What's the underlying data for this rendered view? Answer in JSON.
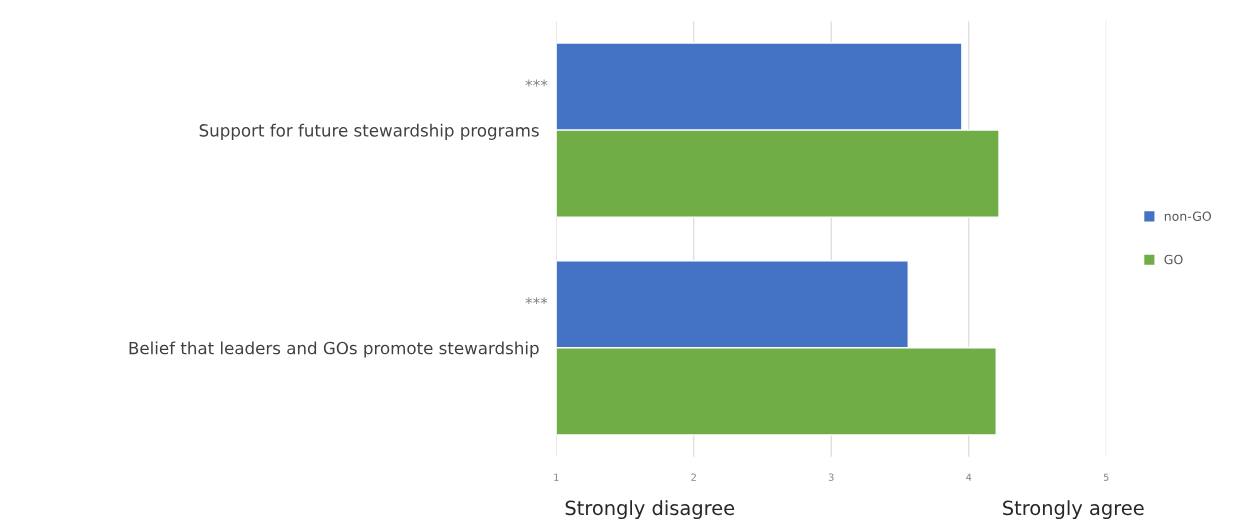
{
  "chart_data": {
    "type": "bar",
    "orientation": "horizontal",
    "categories": [
      "Support for future stewardship programs",
      "Belief that leaders and GOs promote stewardship"
    ],
    "series": [
      {
        "name": "non-GO",
        "color": "#4472c4",
        "values": [
          3.95,
          3.56
        ]
      },
      {
        "name": "GO",
        "color": "#70ad47",
        "values": [
          4.22,
          4.2
        ]
      }
    ],
    "xlim": [
      1,
      5
    ],
    "xticks": [
      1,
      2,
      3,
      4,
      5
    ],
    "grid": "x",
    "legend": "right",
    "annotations": [
      "***",
      "***",
      "Strongly disagree",
      "Strongly agree"
    ]
  }
}
